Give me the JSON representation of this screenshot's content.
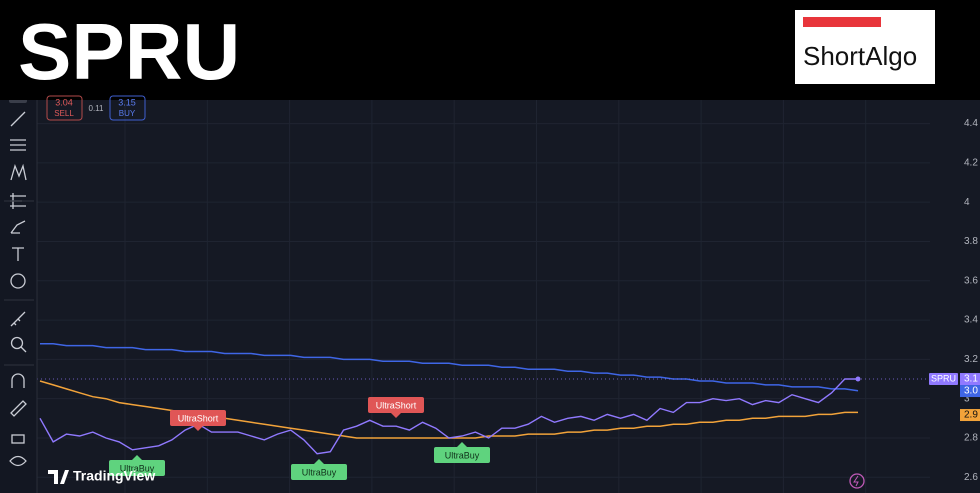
{
  "header": {
    "title": "SPRU",
    "logo": "ShortAlgo"
  },
  "trade_panel": {
    "sell_price": "3.04",
    "sell": "SELL",
    "spread": "0.11",
    "buy_price": "3.15",
    "buy": "BUY"
  },
  "watermark": "TradingView",
  "chart_data": {
    "type": "line",
    "series": [
      {
        "name": "SPRU",
        "color": "#9079ff",
        "values": [
          2.9,
          2.78,
          2.82,
          2.81,
          2.83,
          2.8,
          2.78,
          2.74,
          2.75,
          2.76,
          2.79,
          2.84,
          2.87,
          2.83,
          2.83,
          2.83,
          2.81,
          2.79,
          2.82,
          2.84,
          2.79,
          2.72,
          2.73,
          2.84,
          2.86,
          2.89,
          2.86,
          2.86,
          2.84,
          2.88,
          2.85,
          2.8,
          2.81,
          2.83,
          2.8,
          2.85,
          2.85,
          2.87,
          2.91,
          2.88,
          2.9,
          2.91,
          2.89,
          2.92,
          2.9,
          2.92,
          2.89,
          2.95,
          2.93,
          2.98,
          2.98,
          3.0,
          2.99,
          3.0,
          2.97,
          2.99,
          2.98,
          3.02,
          3.0,
          2.98,
          3.03,
          3.1,
          3.1
        ]
      },
      {
        "color": "#3f66e6",
        "values": [
          3.28,
          3.28,
          3.27,
          3.27,
          3.27,
          3.26,
          3.26,
          3.26,
          3.25,
          3.25,
          3.25,
          3.24,
          3.24,
          3.24,
          3.23,
          3.23,
          3.23,
          3.22,
          3.22,
          3.22,
          3.21,
          3.21,
          3.21,
          3.2,
          3.2,
          3.2,
          3.19,
          3.19,
          3.19,
          3.18,
          3.18,
          3.18,
          3.17,
          3.17,
          3.17,
          3.16,
          3.16,
          3.15,
          3.15,
          3.15,
          3.14,
          3.14,
          3.13,
          3.13,
          3.12,
          3.12,
          3.11,
          3.11,
          3.1,
          3.1,
          3.09,
          3.09,
          3.08,
          3.08,
          3.08,
          3.07,
          3.07,
          3.06,
          3.06,
          3.06,
          3.05,
          3.05,
          3.04
        ]
      },
      {
        "color": "#f2a33a",
        "values": [
          3.09,
          3.07,
          3.05,
          3.03,
          3.01,
          3.0,
          2.98,
          2.97,
          2.96,
          2.95,
          2.94,
          2.93,
          2.92,
          2.91,
          2.9,
          2.89,
          2.88,
          2.87,
          2.86,
          2.85,
          2.84,
          2.83,
          2.82,
          2.81,
          2.8,
          2.8,
          2.8,
          2.8,
          2.8,
          2.8,
          2.8,
          2.8,
          2.8,
          2.8,
          2.81,
          2.81,
          2.81,
          2.82,
          2.82,
          2.82,
          2.83,
          2.83,
          2.84,
          2.84,
          2.85,
          2.85,
          2.86,
          2.86,
          2.87,
          2.87,
          2.88,
          2.88,
          2.89,
          2.89,
          2.9,
          2.9,
          2.91,
          2.91,
          2.91,
          2.92,
          2.92,
          2.93,
          2.93
        ]
      }
    ],
    "price_scale_labels": [
      "3.1",
      "3.0",
      "2.9"
    ],
    "signals": [
      "UltraShort",
      "UltraShort",
      "UltraBuy",
      "UltraBuy",
      "UltraBuy"
    ],
    "ylim": [
      2.52,
      4.52
    ],
    "yticks": [
      2.6,
      2.8,
      3.0,
      3.2,
      3.4,
      3.6,
      3.8,
      4.0,
      4.2,
      4.4
    ],
    "grid": true
  }
}
